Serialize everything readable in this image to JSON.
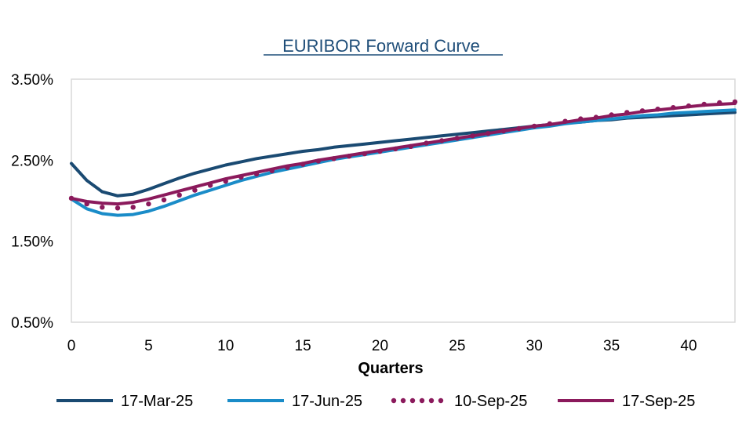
{
  "chart_data": {
    "type": "line",
    "title": "EURIBOR  Forward Curve",
    "xlabel": "Quarters",
    "ylabel": "",
    "xlim": [
      0,
      43
    ],
    "ylim": [
      0.5,
      3.5
    ],
    "x_ticks": [
      "0",
      "5",
      "10",
      "15",
      "20",
      "25",
      "30",
      "35",
      "40"
    ],
    "y_ticks": [
      "0.50%",
      "1.50%",
      "2.50%",
      "3.50%"
    ],
    "grid": false,
    "legend": "bottom",
    "x": [
      0,
      1,
      2,
      3,
      4,
      5,
      6,
      7,
      8,
      9,
      10,
      11,
      12,
      13,
      14,
      15,
      16,
      17,
      18,
      19,
      20,
      21,
      22,
      23,
      24,
      25,
      26,
      27,
      28,
      29,
      30,
      31,
      32,
      33,
      34,
      35,
      36,
      37,
      38,
      39,
      40,
      41,
      42,
      43
    ],
    "series": [
      {
        "name": "17-Mar-25",
        "color": "#1a4a72",
        "style": "solid",
        "values": [
          2.46,
          2.25,
          2.11,
          2.06,
          2.08,
          2.14,
          2.21,
          2.28,
          2.34,
          2.39,
          2.44,
          2.48,
          2.52,
          2.55,
          2.58,
          2.61,
          2.63,
          2.66,
          2.68,
          2.7,
          2.72,
          2.74,
          2.76,
          2.78,
          2.8,
          2.82,
          2.84,
          2.86,
          2.88,
          2.9,
          2.92,
          2.94,
          2.96,
          2.97,
          2.99,
          3.0,
          3.02,
          3.03,
          3.04,
          3.05,
          3.06,
          3.07,
          3.08,
          3.09
        ]
      },
      {
        "name": "17-Jun-25",
        "color": "#1a8cc8",
        "style": "solid",
        "values": [
          2.02,
          1.9,
          1.84,
          1.82,
          1.83,
          1.87,
          1.93,
          2.0,
          2.07,
          2.13,
          2.19,
          2.25,
          2.3,
          2.35,
          2.39,
          2.43,
          2.47,
          2.51,
          2.54,
          2.57,
          2.6,
          2.63,
          2.66,
          2.69,
          2.72,
          2.75,
          2.78,
          2.81,
          2.84,
          2.87,
          2.9,
          2.92,
          2.95,
          2.97,
          2.99,
          3.01,
          3.03,
          3.05,
          3.06,
          3.08,
          3.09,
          3.1,
          3.11,
          3.12
        ]
      },
      {
        "name": "10-Sep-25",
        "color": "#8b1a5c",
        "style": "dotted",
        "values": [
          2.03,
          1.96,
          1.92,
          1.91,
          1.92,
          1.96,
          2.01,
          2.07,
          2.13,
          2.19,
          2.24,
          2.29,
          2.33,
          2.37,
          2.41,
          2.45,
          2.49,
          2.52,
          2.55,
          2.58,
          2.61,
          2.64,
          2.67,
          2.71,
          2.74,
          2.77,
          2.8,
          2.83,
          2.86,
          2.89,
          2.92,
          2.95,
          2.98,
          3.01,
          3.03,
          3.06,
          3.09,
          3.11,
          3.13,
          3.15,
          3.17,
          3.19,
          3.21,
          3.22
        ]
      },
      {
        "name": "17-Sep-25",
        "color": "#8b1a5c",
        "style": "solid",
        "values": [
          2.03,
          1.99,
          1.97,
          1.96,
          1.98,
          2.02,
          2.07,
          2.12,
          2.17,
          2.22,
          2.27,
          2.31,
          2.35,
          2.39,
          2.43,
          2.46,
          2.5,
          2.53,
          2.56,
          2.59,
          2.62,
          2.65,
          2.68,
          2.71,
          2.74,
          2.77,
          2.8,
          2.83,
          2.86,
          2.89,
          2.92,
          2.94,
          2.97,
          3.0,
          3.02,
          3.05,
          3.07,
          3.1,
          3.12,
          3.14,
          3.16,
          3.18,
          3.19,
          3.2
        ]
      }
    ]
  }
}
